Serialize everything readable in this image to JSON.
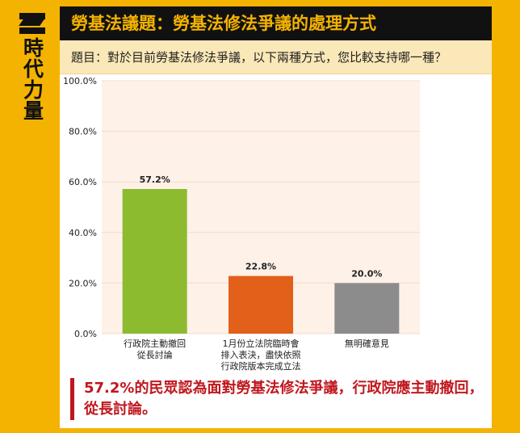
{
  "brand": {
    "name": "時代力量"
  },
  "header": {
    "title": "勞基法議題：勞基法修法爭議的處理方式",
    "question": "題目：對於目前勞基法修法爭議，以下兩種方式，您比較支持哪一種？"
  },
  "colors": {
    "accent": "#f4b300",
    "title_bg": "#111111",
    "plot_bg": "#fdf1e8",
    "summary": "#c0171e"
  },
  "chart_data": {
    "type": "bar",
    "categories": [
      [
        "行政院主動撤回",
        "從長討論"
      ],
      [
        "1月份立法院臨時會",
        "排入表決，盡快依照",
        "行政院版本完成立法"
      ],
      [
        "無明確意見"
      ]
    ],
    "values": [
      57.2,
      22.8,
      20.0
    ],
    "value_labels": [
      "57.2%",
      "22.8%",
      "20.0%"
    ],
    "colors": [
      "#8dbb2f",
      "#e2601a",
      "#8c8c8c"
    ],
    "ylim": [
      0,
      100
    ],
    "yticks": [
      0,
      20,
      40,
      60,
      80,
      100
    ],
    "ytick_labels": [
      "0.0%",
      "20.0%",
      "40.0%",
      "60.0%",
      "80.0%",
      "100.0%"
    ],
    "grid": true
  },
  "summary": "57.2%的民眾認為面對勞基法修法爭議，行政院應主動撤回，從長討論。"
}
